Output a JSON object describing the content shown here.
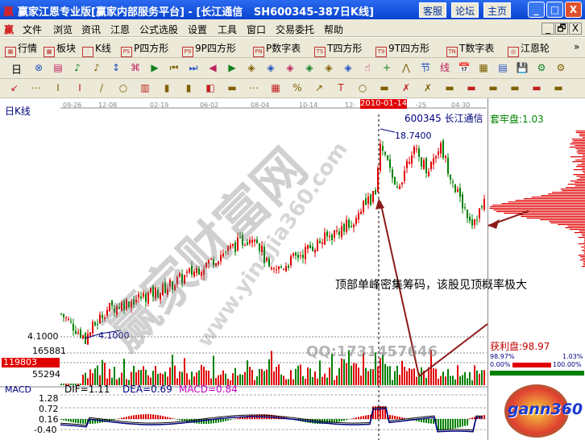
{
  "window": {
    "title": "赢家江恩专业版[赢家内部服务平台] - [长江通信   SH600345-387日K线]",
    "logo": "赢",
    "buttons": [
      "客服",
      "论坛",
      "主页"
    ],
    "controls": [
      "_",
      "□",
      "X"
    ]
  },
  "menu": {
    "logo": "赢",
    "items": [
      "文件",
      "浏览",
      "资讯",
      "江恩",
      "公式选股",
      "设置",
      "工具",
      "窗口",
      "交易委托",
      "帮助"
    ],
    "mdi": [
      "_",
      "🗗",
      "X"
    ]
  },
  "toolbar1": {
    "items": [
      {
        "icon": "grid-icon",
        "glyph": "▦",
        "label": "行情"
      },
      {
        "icon": "blocks-icon",
        "glyph": "▩",
        "label": "板块"
      },
      {
        "icon": "kline-icon",
        "glyph": "⫶",
        "label": "K线"
      },
      {
        "icon": "ps-icon",
        "glyph": "PS",
        "label": "P四方形"
      },
      {
        "icon": "p9-icon",
        "glyph": "P9",
        "label": "9P四方形"
      },
      {
        "icon": "pn-icon",
        "glyph": "PN",
        "label": "P数字表"
      },
      {
        "icon": "ts-icon",
        "glyph": "TS",
        "label": "T四方形"
      },
      {
        "icon": "t9-icon",
        "glyph": "T9",
        "label": "9T四方形"
      },
      {
        "icon": "tn-icon",
        "glyph": "TN",
        "label": "T数字表"
      },
      {
        "icon": "wheel-icon",
        "glyph": "◎",
        "label": "江恩轮"
      }
    ],
    "more": "»"
  },
  "toolbar2": {
    "period": "日"
  },
  "chart": {
    "title": "日K线",
    "stock_label": "600345  长江通信",
    "dates": [
      "09-26",
      "12-08",
      "02-19",
      "06-02",
      "08-04",
      "10-14",
      "12-",
      "2010-01-14",
      "-25",
      "04-30"
    ],
    "highlight_date": "2010-01-14",
    "high_label": "18.7400",
    "low_label": "4.1000",
    "low_axis": "4.1000",
    "volume_ticks": [
      "165881",
      "55294"
    ],
    "volume_current": "119803",
    "macd": {
      "title": "MACD",
      "dif": "DIF=1.11",
      "dea": "DEA=0.69",
      "macd": "MACD=0.84",
      "ticks": [
        "1.28",
        "0.72",
        "0.16",
        "-0.40"
      ]
    },
    "annotation": "顶部单峰密集筹码，该股见顶概率极大",
    "watermark": "赢家财富网",
    "watermark_url": "www.yingjia360.com",
    "qq": "QQ:1731457646",
    "colors": {
      "up": "#e00000",
      "down": "#008000",
      "annotation_arrow": "#8b1a1a",
      "dif": "#000000",
      "dea": "#000080",
      "macd": "#c000c0"
    }
  },
  "chart_data": {
    "type": "candlestick",
    "ylim": [
      4.1,
      18.74
    ],
    "close_path": [
      5.9,
      4.1,
      6.2,
      7.65,
      9.4,
      11.8,
      8.8,
      10.6,
      12.4,
      14.7,
      18.74,
      14.7,
      18.0,
      16.5,
      18.3,
      14.2,
      12.7,
      13.9
    ],
    "high": 18.74,
    "low": 4.1
  },
  "chips": {
    "trapped": "套牢盘:1.03",
    "profit": "获利盘:98.97",
    "p1": "98.97%",
    "p2": "1.03%",
    "p3": "0.00%",
    "p4": "100.00%"
  },
  "logo": {
    "text": "gann360"
  }
}
